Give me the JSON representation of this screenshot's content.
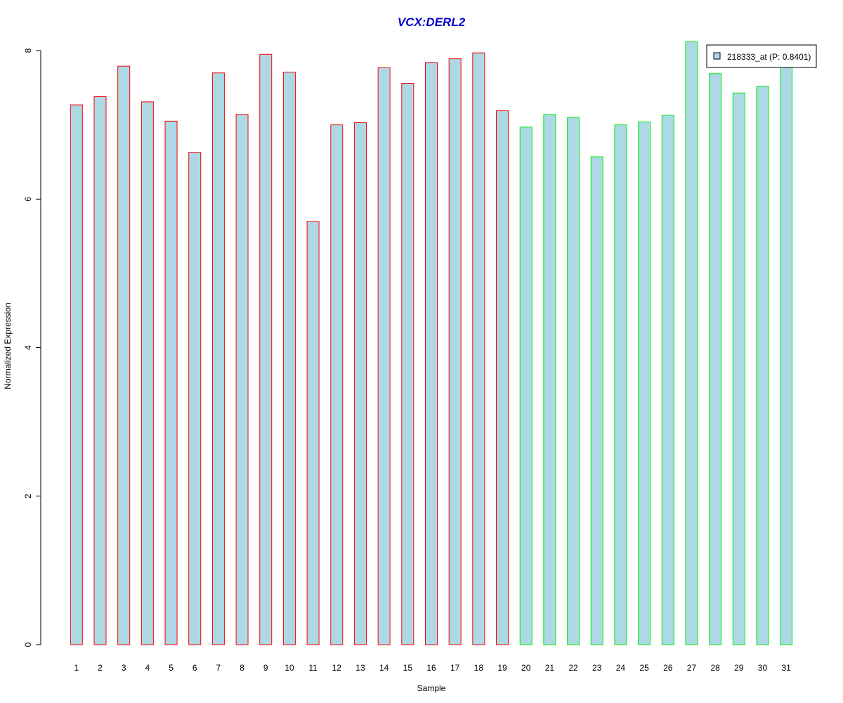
{
  "chart_data": {
    "type": "bar",
    "title": "VCX:DERL2",
    "xlabel": "Sample",
    "ylabel": "Normalized Expression",
    "ylim": [
      0,
      8
    ],
    "yticks": [
      0,
      2,
      4,
      6,
      8
    ],
    "grid": false,
    "legend_position": "top-right",
    "categories": [
      "1",
      "2",
      "3",
      "4",
      "5",
      "6",
      "7",
      "8",
      "9",
      "10",
      "11",
      "12",
      "13",
      "14",
      "15",
      "16",
      "17",
      "18",
      "19",
      "20",
      "21",
      "22",
      "23",
      "24",
      "25",
      "26",
      "27",
      "28",
      "29",
      "30",
      "31"
    ],
    "series": [
      {
        "name": "218333_at (P: 0.8401)",
        "values": [
          7.27,
          7.38,
          7.79,
          7.31,
          7.05,
          6.63,
          7.7,
          7.14,
          7.95,
          7.71,
          5.7,
          7.0,
          7.03,
          7.77,
          7.56,
          7.84,
          7.89,
          7.97,
          7.19,
          6.97,
          7.14,
          7.1,
          6.57,
          7.0,
          7.04,
          7.13,
          8.12,
          7.69,
          7.43,
          7.52,
          7.8
        ]
      }
    ],
    "group_of_bar": [
      "a",
      "a",
      "a",
      "a",
      "a",
      "a",
      "a",
      "a",
      "a",
      "a",
      "a",
      "a",
      "a",
      "a",
      "a",
      "a",
      "a",
      "a",
      "a",
      "b",
      "b",
      "b",
      "b",
      "b",
      "b",
      "b",
      "b",
      "b",
      "b",
      "b",
      "b"
    ]
  },
  "colors": {
    "title": "#0000cc",
    "bar_fill": "#add8e6",
    "group_a_border": "#ff0000",
    "group_b_border": "#00ee00",
    "axis": "#000000"
  }
}
